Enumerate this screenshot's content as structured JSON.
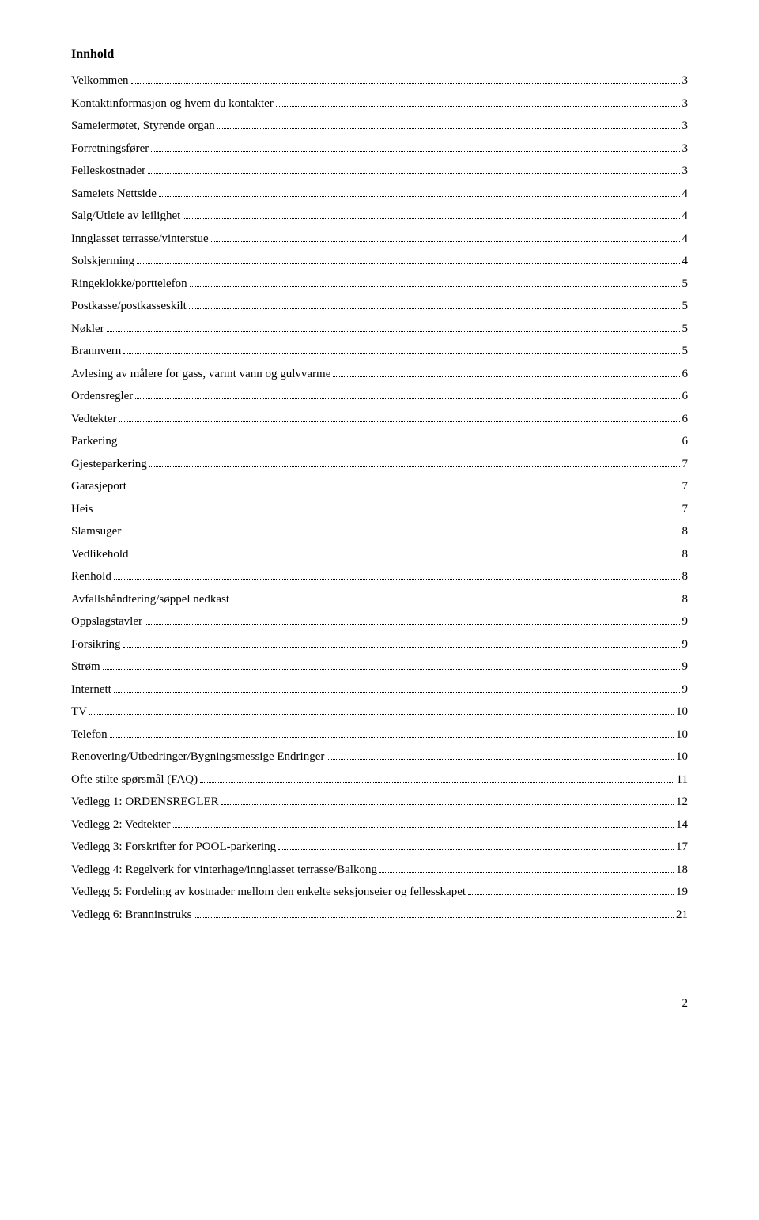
{
  "heading": "Innhold",
  "toc": [
    {
      "label": "Velkommen",
      "page": "3"
    },
    {
      "label": "Kontaktinformasjon og hvem du kontakter",
      "page": "3"
    },
    {
      "label": "Sameiermøtet, Styrende organ",
      "page": "3"
    },
    {
      "label": "Forretningsfører",
      "page": "3"
    },
    {
      "label": "Felleskostnader",
      "page": "3"
    },
    {
      "label": "Sameiets Nettside",
      "page": "4"
    },
    {
      "label": "Salg/Utleie av leilighet",
      "page": "4"
    },
    {
      "label": "Innglasset terrasse/vinterstue",
      "page": "4"
    },
    {
      "label": "Solskjerming",
      "page": "4"
    },
    {
      "label": "Ringeklokke/porttelefon",
      "page": "5"
    },
    {
      "label": "Postkasse/postkasseskilt",
      "page": "5"
    },
    {
      "label": "Nøkler",
      "page": "5"
    },
    {
      "label": "Brannvern",
      "page": "5"
    },
    {
      "label": "Avlesing av målere for gass, varmt vann og gulvvarme",
      "page": "6"
    },
    {
      "label": "Ordensregler",
      "page": "6"
    },
    {
      "label": "Vedtekter",
      "page": "6"
    },
    {
      "label": "Parkering",
      "page": "6"
    },
    {
      "label": "Gjesteparkering",
      "page": "7"
    },
    {
      "label": "Garasjeport",
      "page": "7"
    },
    {
      "label": "Heis",
      "page": "7"
    },
    {
      "label": "Slamsuger",
      "page": "8"
    },
    {
      "label": "Vedlikehold",
      "page": "8"
    },
    {
      "label": "Renhold",
      "page": "8"
    },
    {
      "label": "Avfallshåndtering/søppel nedkast",
      "page": "8"
    },
    {
      "label": "Oppslagstavler",
      "page": "9"
    },
    {
      "label": "Forsikring",
      "page": "9"
    },
    {
      "label": "Strøm",
      "page": "9"
    },
    {
      "label": "Internett",
      "page": "9"
    },
    {
      "label": "TV",
      "page": "10"
    },
    {
      "label": "Telefon",
      "page": "10"
    },
    {
      "label": "Renovering/Utbedringer/Bygningsmessige Endringer",
      "page": "10"
    },
    {
      "label": "Ofte stilte spørsmål (FAQ)",
      "page": "11"
    },
    {
      "label": "Vedlegg 1: ORDENSREGLER",
      "page": "12"
    },
    {
      "label": "Vedlegg 2: Vedtekter",
      "page": "14"
    },
    {
      "label": "Vedlegg 3: Forskrifter for POOL-parkering",
      "page": "17"
    },
    {
      "label": "Vedlegg 4: Regelverk for vinterhage/innglasset terrasse/Balkong",
      "page": "18"
    },
    {
      "label": "Vedlegg 5: Fordeling av kostnader mellom den enkelte seksjonseier og fellesskapet",
      "page": "19"
    },
    {
      "label": "Vedlegg 6: Branninstruks",
      "page": "21"
    }
  ],
  "page_number": "2"
}
